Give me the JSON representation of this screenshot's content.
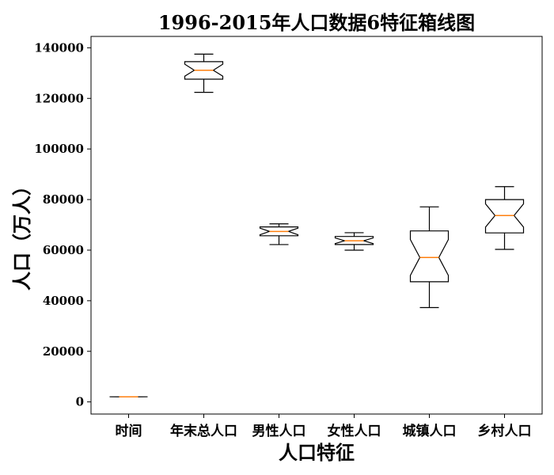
{
  "chart_data": {
    "type": "boxplot",
    "title": "1996-2015年人口数据6特征箱线图",
    "xlabel": "人口特征",
    "ylabel": "人口（万人）",
    "ylim": [
      -4800,
      144500
    ],
    "yticks": [
      0,
      20000,
      40000,
      60000,
      80000,
      100000,
      120000,
      140000
    ],
    "ytick_labels": [
      "0",
      "20000",
      "40000",
      "60000",
      "80000",
      "100000",
      "120000",
      "140000"
    ],
    "notched": true,
    "categories": [
      "时间",
      "年末总人口",
      "男性人口",
      "女性人口",
      "城镇人口",
      "乡村人口"
    ],
    "series": [
      {
        "min": 1996,
        "q1": 2000,
        "median": 2005,
        "q3": 2010,
        "max": 2015,
        "notch_low": 2002,
        "notch_high": 2008
      },
      {
        "min": 122400,
        "q1": 127600,
        "median": 131100,
        "q3": 134500,
        "max": 137500,
        "notch_low": 128800,
        "notch_high": 133500
      },
      {
        "min": 62200,
        "q1": 65700,
        "median": 67400,
        "q3": 69200,
        "max": 70400,
        "notch_low": 66100,
        "notch_high": 68700
      },
      {
        "min": 60000,
        "q1": 62200,
        "median": 63700,
        "q3": 65400,
        "max": 66900,
        "notch_low": 62600,
        "notch_high": 64800
      },
      {
        "min": 37300,
        "q1": 47500,
        "median": 57100,
        "q3": 67600,
        "max": 77100,
        "notch_low": 50000,
        "notch_high": 64200
      },
      {
        "min": 60300,
        "q1": 66800,
        "median": 73700,
        "q3": 80000,
        "max": 85100,
        "notch_low": 69100,
        "notch_high": 78300
      }
    ],
    "colors": {
      "box": "#000000",
      "median": "#ff7f0e",
      "background": "#ffffff"
    },
    "grid": false,
    "legend": "none"
  }
}
